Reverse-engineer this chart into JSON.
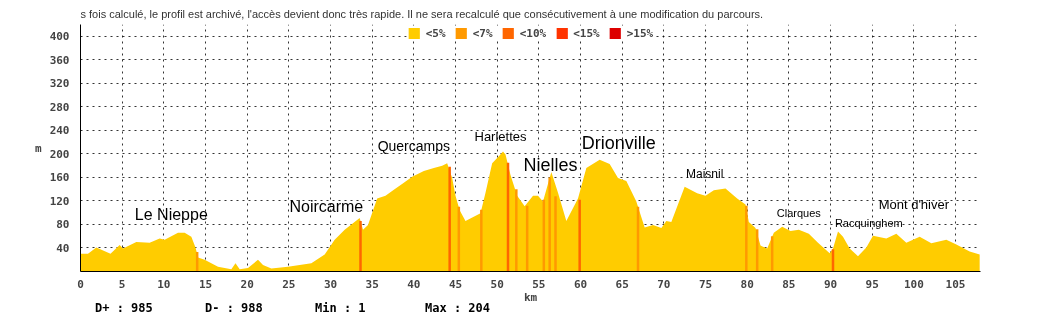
{
  "chart_data": {
    "type": "area",
    "title": "s fois calculé, le profil est archivé, l'accès devient donc très rapide. Il ne sera recalculé que consécutivement à une modification du parcours.",
    "xlabel": "km",
    "ylabel": "m",
    "xlim": [
      0,
      108
    ],
    "ylim": [
      0,
      420
    ],
    "xticks": [
      0,
      5,
      10,
      15,
      20,
      25,
      30,
      35,
      40,
      45,
      50,
      55,
      60,
      65,
      70,
      75,
      80,
      85,
      90,
      95,
      100,
      105
    ],
    "yticks": [
      40,
      80,
      120,
      160,
      200,
      240,
      280,
      320,
      360,
      400
    ],
    "grid": true,
    "legend": "top",
    "series": [
      {
        "name": "<5%",
        "color": "#ffcc00",
        "x": [
          0,
          0.9,
          1.9,
          3.6,
          4.7,
          5.1,
          6.7,
          8.3,
          9.5,
          10.1,
          11.7,
          12.5,
          13.3,
          13.8,
          14.1,
          14.9,
          16.5,
          18.1,
          18.6,
          19.1,
          20.1,
          21.3,
          21.9,
          22.9,
          24.9,
          27.7,
          29.3,
          30.5,
          31.7,
          33.5,
          33.9,
          34.5,
          35.6,
          36.6,
          37.6,
          38.8,
          39.8,
          41.2,
          42.4,
          43.4,
          44.0,
          44.6,
          45.0,
          45.5,
          46.2,
          48.0,
          48.6,
          49.4,
          50.2,
          50.7,
          51.0,
          51.6,
          52.4,
          53.3,
          54.3,
          54.9,
          55.5,
          56.5,
          57.3,
          58.3,
          59.7,
          60.7,
          62.3,
          63.5,
          64.5,
          65.5,
          66.7,
          67.7,
          68.7,
          69.7,
          70.3,
          70.9,
          72.5,
          74.0,
          75.0,
          76.0,
          77.4,
          78.8,
          79.8,
          80.2,
          81.0,
          81.6,
          82.4,
          83.2,
          84.2,
          85.2,
          86.2,
          87.4,
          88.5,
          89.9,
          90.3,
          90.9,
          91.5,
          92.3,
          93.3,
          94.3,
          95.1,
          96.7,
          97.9,
          99.1,
          100.7,
          102.1,
          103.9,
          105.1,
          106.7,
          107.9
        ],
        "values": [
          30,
          30,
          41,
          30,
          45,
          39,
          50,
          49,
          56,
          54,
          66,
          66,
          59,
          41,
          24,
          20,
          8,
          4,
          14,
          4,
          6,
          20,
          11,
          5,
          8,
          14,
          29,
          54,
          71,
          91,
          71,
          79,
          124,
          129,
          139,
          151,
          161,
          171,
          176,
          180,
          184,
          159,
          129,
          104,
          86,
          99,
          134,
          184,
          196,
          204,
          199,
          164,
          129,
          111,
          129,
          129,
          119,
          169,
          134,
          86,
          124,
          176,
          190,
          183,
          159,
          154,
          119,
          75,
          79,
          74,
          86,
          84,
          144,
          133,
          129,
          138,
          141,
          124,
          114,
          84,
          74,
          44,
          39,
          66,
          76,
          69,
          71,
          64,
          49,
          31,
          39,
          68,
          59,
          39,
          26,
          41,
          61,
          56,
          64,
          49,
          59,
          48,
          54,
          46,
          34,
          29
        ]
      },
      {
        "name": "<7%",
        "color": "#ff9900",
        "type": "bar",
        "x": [
          14.0,
          45.4,
          48.1,
          52.3,
          53.6,
          55.6,
          56.3,
          57.0,
          66.9,
          79.9,
          81.2,
          83.0
        ],
        "values": [
          33,
          110,
          105,
          140,
          112,
          122,
          160,
          128,
          110,
          112,
          72,
          60
        ]
      },
      {
        "name": "<10%",
        "color": "#ff6600",
        "type": "bar",
        "x": [
          33.6,
          44.3,
          51.3,
          59.9,
          90.3
        ],
        "values": [
          86,
          178,
          185,
          122,
          38
        ]
      },
      {
        "name": "<15%",
        "color": "#ff3300",
        "type": "bar"
      },
      {
        "name": ">15%",
        "color": "#dd0000",
        "type": "bar"
      }
    ],
    "annotations": [
      "Le Nieppe",
      "Noircarme",
      "Quercamps",
      "Harlettes",
      "Nielles",
      "Drionville",
      "Maisnil",
      "Clarques",
      "Racquinghem",
      "Mont d'hiver",
      "D+ : 985",
      "D- : 988",
      "Min : 1",
      "Max : 204"
    ]
  }
}
